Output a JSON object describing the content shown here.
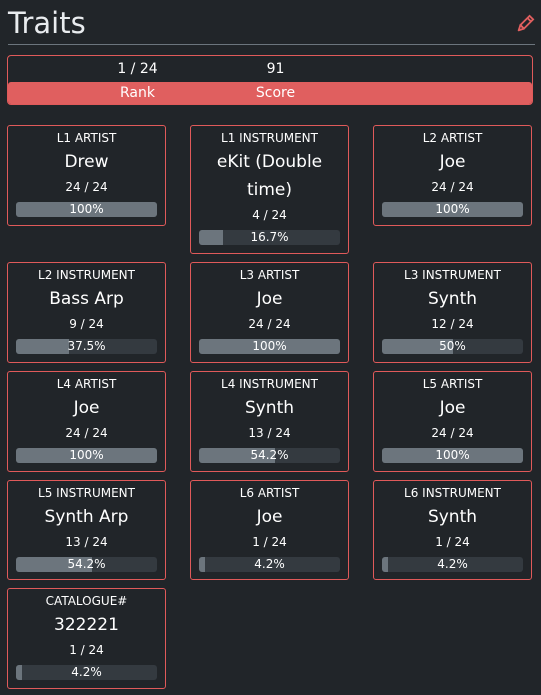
{
  "header": {
    "title": "Traits",
    "edit_icon": "pencil-icon"
  },
  "summary": {
    "rank_value": "1 / 24",
    "score_value": "91",
    "rank_label": "Rank",
    "score_label": "Score",
    "bar_color": "#e05f5f"
  },
  "traits": [
    {
      "category": "L1 ARTIST",
      "name": "Drew",
      "count": "24 / 24",
      "percent_label": "100%",
      "fraction": 1.0
    },
    {
      "category": "L1 INSTRUMENT",
      "name": "eKit (Double time)",
      "count": "4 / 24",
      "percent_label": "16.7%",
      "fraction": 0.167
    },
    {
      "category": "L2 ARTIST",
      "name": "Joe",
      "count": "24 / 24",
      "percent_label": "100%",
      "fraction": 1.0
    },
    {
      "category": "L2 INSTRUMENT",
      "name": "Bass Arp",
      "count": "9 / 24",
      "percent_label": "37.5%",
      "fraction": 0.375
    },
    {
      "category": "L3 ARTIST",
      "name": "Joe",
      "count": "24 / 24",
      "percent_label": "100%",
      "fraction": 1.0
    },
    {
      "category": "L3 INSTRUMENT",
      "name": "Synth",
      "count": "12 / 24",
      "percent_label": "50%",
      "fraction": 0.5
    },
    {
      "category": "L4 ARTIST",
      "name": "Joe",
      "count": "24 / 24",
      "percent_label": "100%",
      "fraction": 1.0
    },
    {
      "category": "L4 INSTRUMENT",
      "name": "Synth",
      "count": "13 / 24",
      "percent_label": "54.2%",
      "fraction": 0.542
    },
    {
      "category": "L5 ARTIST",
      "name": "Joe",
      "count": "24 / 24",
      "percent_label": "100%",
      "fraction": 1.0
    },
    {
      "category": "L5 INSTRUMENT",
      "name": "Synth Arp",
      "count": "13 / 24",
      "percent_label": "54.2%",
      "fraction": 0.542
    },
    {
      "category": "L6 ARTIST",
      "name": "Joe",
      "count": "1 / 24",
      "percent_label": "4.2%",
      "fraction": 0.042
    },
    {
      "category": "L6 INSTRUMENT",
      "name": "Synth",
      "count": "1 / 24",
      "percent_label": "4.2%",
      "fraction": 0.042
    },
    {
      "category": "CATALOGUE#",
      "name": "322221",
      "count": "1 / 24",
      "percent_label": "4.2%",
      "fraction": 0.042
    }
  ],
  "colors": {
    "card_border": "#e05a5a",
    "bar_track": "#343a40",
    "bar_fill": "#6c757d",
    "background": "#212529"
  }
}
